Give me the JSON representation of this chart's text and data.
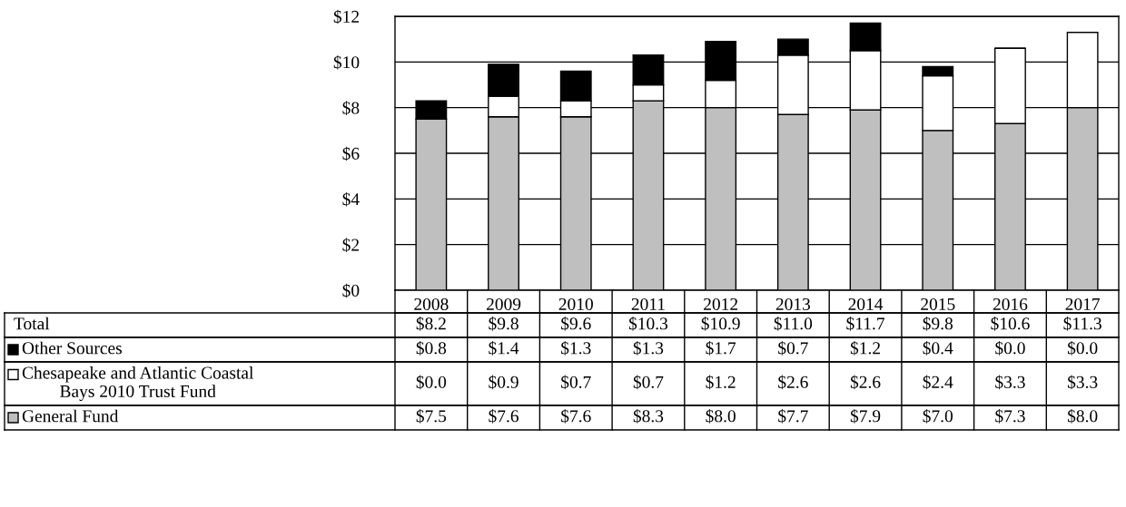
{
  "chart_data": {
    "type": "bar",
    "stacked": true,
    "categories": [
      "2008",
      "2009",
      "2010",
      "2011",
      "2012",
      "2013",
      "2014",
      "2015",
      "2016",
      "2017"
    ],
    "series": [
      {
        "name": "General Fund",
        "color": "#bfbfbf",
        "values": [
          7.5,
          7.6,
          7.6,
          8.3,
          8.0,
          7.7,
          7.9,
          7.0,
          7.3,
          8.0
        ],
        "value_labels": [
          "$7.5",
          "$7.6",
          "$7.6",
          "$8.3",
          "$8.0",
          "$7.7",
          "$7.9",
          "$7.0",
          "$7.3",
          "$8.0"
        ]
      },
      {
        "name": "Chesapeake and Atlantic Coastal\nBays 2010 Trust Fund",
        "color": "#ffffff",
        "values": [
          0.0,
          0.9,
          0.7,
          0.7,
          1.2,
          2.6,
          2.6,
          2.4,
          3.3,
          3.3
        ],
        "value_labels": [
          "$0.0",
          "$0.9",
          "$0.7",
          "$0.7",
          "$1.2",
          "$2.6",
          "$2.6",
          "$2.4",
          "$3.3",
          "$3.3"
        ]
      },
      {
        "name": "Other Sources",
        "color": "#000000",
        "values": [
          0.8,
          1.4,
          1.3,
          1.3,
          1.7,
          0.7,
          1.2,
          0.4,
          0.0,
          0.0
        ],
        "value_labels": [
          "$0.8",
          "$1.4",
          "$1.3",
          "$1.3",
          "$1.7",
          "$0.7",
          "$1.2",
          "$0.4",
          "$0.0",
          "$0.0"
        ]
      }
    ],
    "annotations": [
      "Total"
    ],
    "legend": "bottom left",
    "totals": [
      "$8.2",
      "$9.8",
      "$9.6",
      "$10.3",
      "$10.9",
      "$11.0",
      "$11.7",
      "$9.8",
      "$10.6",
      "$11.3"
    ],
    "ylim": [
      0,
      12
    ],
    "yticks": [
      {
        "value": 0,
        "label": "$0"
      },
      {
        "value": 2,
        "label": "$2"
      },
      {
        "value": 4,
        "label": "$4"
      },
      {
        "value": 6,
        "label": "$6"
      },
      {
        "value": 8,
        "label": "$8"
      },
      {
        "value": 10,
        "label": "$10"
      },
      {
        "value": 12,
        "label": "$12"
      }
    ],
    "grid": "y"
  }
}
